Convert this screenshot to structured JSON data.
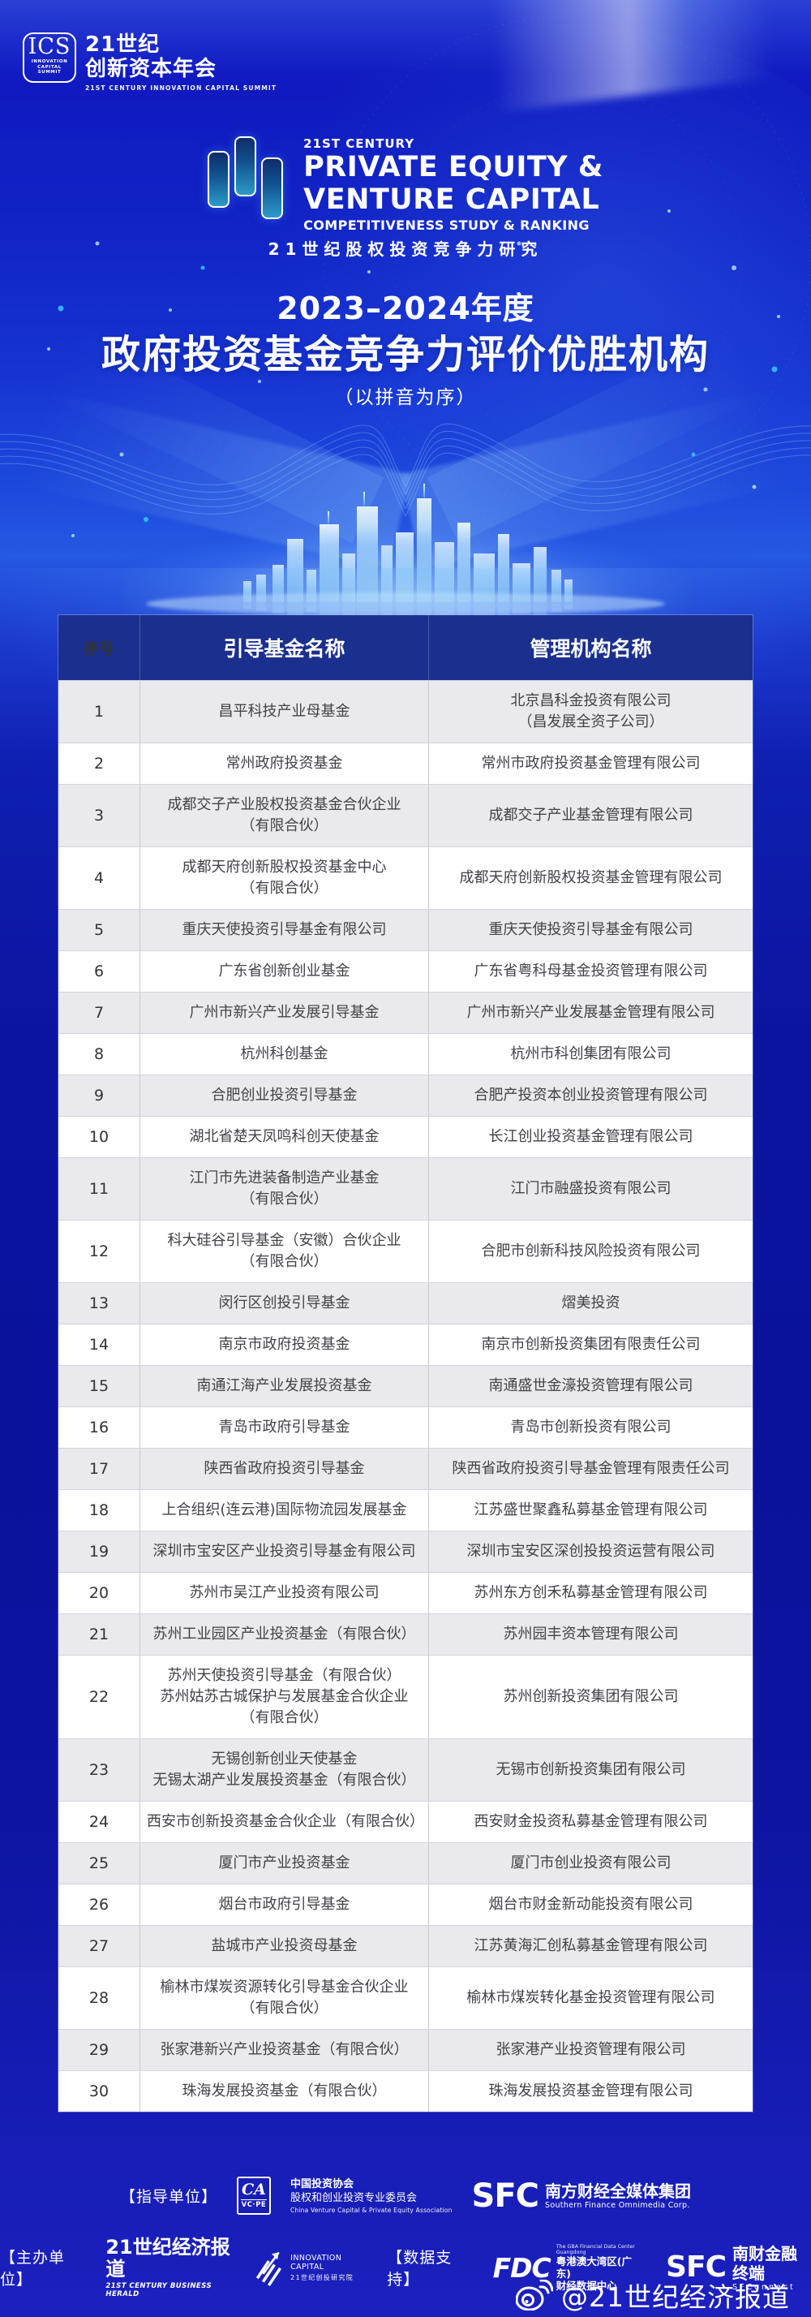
{
  "colors": {
    "header_bg": "#1b308e",
    "row_alt": "#e9e9ee",
    "row_line": "#d3d3db",
    "bg_top": "#141fc6",
    "bg_deep": "#0a139f",
    "bg_bottom": "#1c20bf",
    "accent_cyan": "#35c0ff"
  },
  "brand": {
    "ics": "ICS",
    "ics_sub": "INNOVATION\nCAPITAL\nSUMMIT",
    "cn1": "21世纪",
    "cn2": "创新资本年会",
    "en": "21ST CENTURY INNOVATION CAPITAL SUMMIT"
  },
  "banner": {
    "century": "21ST CENTURY",
    "line1": "PRIVATE EQUITY &",
    "line2": "VENTURE CAPITAL",
    "line3": "COMPETITIVENESS STUDY & RANKING",
    "cn": "21世纪股权投资竞争力研究"
  },
  "title": {
    "year": "2023–2024年度",
    "main": "政府投资基金竞争力评价优胜机构",
    "note": "（以拼音为序）"
  },
  "table": {
    "headers": [
      "序号",
      "引导基金名称",
      "管理机构名称"
    ],
    "rows": [
      {
        "no": "1",
        "fund": "昌平科技产业母基金",
        "manager": "北京昌科金投资有限公司\n（昌发展全资子公司）"
      },
      {
        "no": "2",
        "fund": "常州政府投资基金",
        "manager": "常州市政府投资基金管理有限公司"
      },
      {
        "no": "3",
        "fund": "成都交子产业股权投资基金合伙企业\n（有限合伙）",
        "manager": "成都交子产业基金管理有限公司"
      },
      {
        "no": "4",
        "fund": "成都天府创新股权投资基金中心\n（有限合伙）",
        "manager": "成都天府创新股权投资基金管理有限公司"
      },
      {
        "no": "5",
        "fund": "重庆天使投资引导基金有限公司",
        "manager": "重庆天使投资引导基金有限公司"
      },
      {
        "no": "6",
        "fund": "广东省创新创业基金",
        "manager": "广东省粤科母基金投资管理有限公司"
      },
      {
        "no": "7",
        "fund": "广州市新兴产业发展引导基金",
        "manager": "广州市新兴产业发展基金管理有限公司"
      },
      {
        "no": "8",
        "fund": "杭州科创基金",
        "manager": "杭州市科创集团有限公司"
      },
      {
        "no": "9",
        "fund": "合肥创业投资引导基金",
        "manager": "合肥产投资本创业投资管理有限公司"
      },
      {
        "no": "10",
        "fund": "湖北省楚天凤鸣科创天使基金",
        "manager": "长江创业投资基金管理有限公司"
      },
      {
        "no": "11",
        "fund": "江门市先进装备制造产业基金\n（有限合伙）",
        "manager": "江门市融盛投资有限公司"
      },
      {
        "no": "12",
        "fund": "科大硅谷引导基金（安徽）合伙企业\n（有限合伙）",
        "manager": "合肥市创新科技风险投资有限公司"
      },
      {
        "no": "13",
        "fund": "闵行区创投引导基金",
        "manager": "熠美投资"
      },
      {
        "no": "14",
        "fund": "南京市政府投资基金",
        "manager": "南京市创新投资集团有限责任公司"
      },
      {
        "no": "15",
        "fund": "南通江海产业发展投资基金",
        "manager": "南通盛世金濠投资管理有限公司"
      },
      {
        "no": "16",
        "fund": "青岛市政府引导基金",
        "manager": "青岛市创新投资有限公司"
      },
      {
        "no": "17",
        "fund": "陕西省政府投资引导基金",
        "manager": "陕西省政府投资引导基金管理有限责任公司"
      },
      {
        "no": "18",
        "fund": "上合组织(连云港)国际物流园发展基金",
        "manager": "江苏盛世聚鑫私募基金管理有限公司"
      },
      {
        "no": "19",
        "fund": "深圳市宝安区产业投资引导基金有限公司",
        "manager": "深圳市宝安区深创投投资运营有限公司"
      },
      {
        "no": "20",
        "fund": "苏州市吴江产业投资有限公司",
        "manager": "苏州东方创禾私募基金管理有限公司"
      },
      {
        "no": "21",
        "fund": "苏州工业园区产业投资基金（有限合伙）",
        "manager": "苏州园丰资本管理有限公司"
      },
      {
        "no": "22",
        "fund": "苏州天使投资引导基金（有限合伙）\n苏州姑苏古城保护与发展基金合伙企业\n（有限合伙）",
        "manager": "苏州创新投资集团有限公司"
      },
      {
        "no": "23",
        "fund": "无锡创新创业天使基金\n无锡太湖产业发展投资基金（有限合伙）",
        "manager": "无锡市创新投资集团有限公司"
      },
      {
        "no": "24",
        "fund": "西安市创新投资基金合伙企业（有限合伙）",
        "manager": "西安财金投资私募基金管理有限公司"
      },
      {
        "no": "25",
        "fund": "厦门市产业投资基金",
        "manager": "厦门市创业投资有限公司"
      },
      {
        "no": "26",
        "fund": "烟台市政府引导基金",
        "manager": "烟台市财金新动能投资有限公司"
      },
      {
        "no": "27",
        "fund": "盐城市产业投资母基金",
        "manager": "江苏黄海汇创私募基金管理有限公司"
      },
      {
        "no": "28",
        "fund": "榆林市煤炭资源转化引导基金合伙企业\n（有限合伙）",
        "manager": "榆林市煤炭转化基金投资管理有限公司"
      },
      {
        "no": "29",
        "fund": "张家港新兴产业投资基金（有限合伙）",
        "manager": "张家港产业投资管理有限公司"
      },
      {
        "no": "30",
        "fund": "珠海发展投资基金（有限合伙）",
        "manager": "珠海发展投资基金管理有限公司"
      }
    ]
  },
  "footer": {
    "guide_label": "【指导单位】",
    "ca": {
      "logo_top": "CA",
      "logo_bottom": "VC·PE",
      "cn1": "中国投资协会",
      "cn2": "股权和创业投资专业委员会",
      "en": "China Venture Capital & Private Equity Association"
    },
    "sfc1": {
      "logo": "SFC",
      "cn": "南方财经全媒体集团",
      "en": "Southern Finance Omnimedia Corp."
    },
    "host_label": "【主办单位】",
    "herald": {
      "cn": "21世纪经济报道",
      "en": "21ST CENTURY BUSINESS HERALD"
    },
    "ic": {
      "en": "INNOVATION CAPITAL",
      "cn": "21世纪创投研究院"
    },
    "data_label": "【数据支持】",
    "fdc": {
      "logo": "FDC",
      "en": "The GBA Financial Data Center Guangdong",
      "cn1": "粤港澳大湾区(广东)",
      "cn2": "财经数据中心"
    },
    "sfc2": {
      "logo": "SFC",
      "cn": "南财金融终端",
      "en": "SFConnect"
    }
  },
  "watermark": {
    "text": "@21世纪经济报道"
  }
}
